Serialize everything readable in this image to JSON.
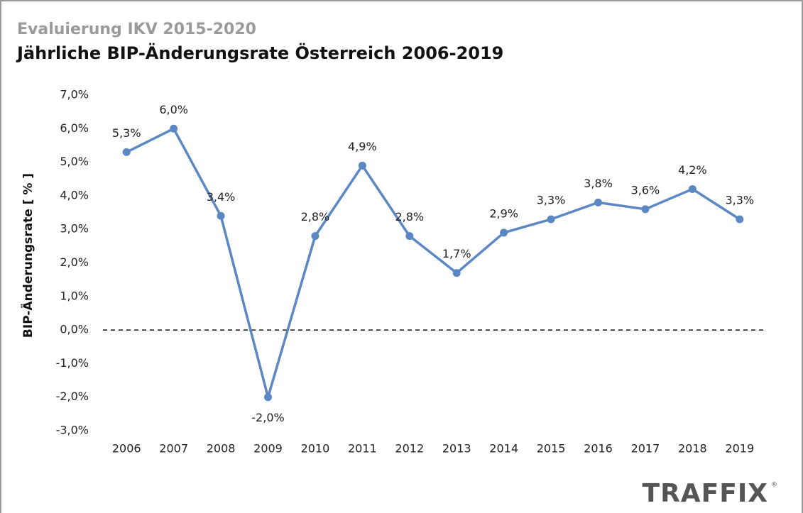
{
  "chart_data": {
    "type": "line",
    "supertitle": "Evaluierung IKV 2015-2020",
    "title": "Jährliche BIP-Änderungsrate Österreich 2006-2019",
    "y_label": "BIP-Änderungsrate [ % ]",
    "categories": [
      "2006",
      "2007",
      "2008",
      "2009",
      "2010",
      "2011",
      "2012",
      "2013",
      "2014",
      "2015",
      "2016",
      "2017",
      "2018",
      "2019"
    ],
    "values": [
      5.3,
      6.0,
      3.4,
      -2.0,
      2.8,
      4.9,
      2.8,
      1.7,
      2.9,
      3.3,
      3.8,
      3.6,
      4.2,
      3.3
    ],
    "value_labels": [
      "5,3%",
      "6,0%",
      "3,4%",
      "-2,0%",
      "2,8%",
      "4,9%",
      "2,8%",
      "1,7%",
      "2,9%",
      "3,3%",
      "3,8%",
      "3,6%",
      "4,2%",
      "3,3%"
    ],
    "color": "#5b87c4",
    "ylim": [
      -3,
      7
    ],
    "yticks": [
      {
        "value": -3,
        "label": "-3,0%"
      },
      {
        "value": -2,
        "label": "-2,0%"
      },
      {
        "value": -1,
        "label": "-1,0%"
      },
      {
        "value": 0,
        "label": "0,0%"
      },
      {
        "value": 1,
        "label": "1,0%"
      },
      {
        "value": 2,
        "label": "2,0%"
      },
      {
        "value": 3,
        "label": "3,0%"
      },
      {
        "value": 4,
        "label": "4,0%"
      },
      {
        "value": 5,
        "label": "5,0%"
      },
      {
        "value": 6,
        "label": "6,0%"
      },
      {
        "value": 7,
        "label": "7,0%"
      }
    ],
    "grid": false,
    "reference_line": {
      "value": 0,
      "style": "dashed"
    },
    "logo": "TRAFFIX",
    "logo_mark": "®"
  }
}
